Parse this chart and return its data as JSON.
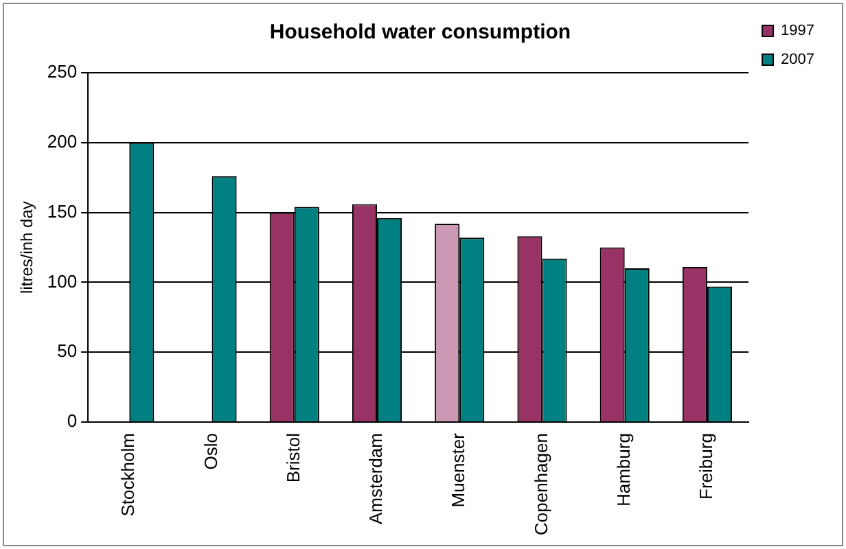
{
  "chart_data": {
    "type": "bar",
    "title": "Household water consumption",
    "ylabel": "litres/inh day",
    "categories": [
      "Stockholm",
      "Oslo",
      "Bristol",
      "Amsterdam",
      "Muenster",
      "Copenhagen",
      "Hamburg",
      "Freiburg"
    ],
    "series": [
      {
        "name": "1997",
        "color": "#993366",
        "colors": [
          "#993366",
          "#993366",
          "#993366",
          "#993366",
          "#cc99b4",
          "#993366",
          "#993366",
          "#993366"
        ],
        "values": [
          null,
          null,
          150,
          156,
          142,
          133,
          125,
          111
        ]
      },
      {
        "name": "2007",
        "color": "#008080",
        "values": [
          200,
          176,
          154,
          146,
          132,
          117,
          110,
          97
        ]
      }
    ],
    "ylim": [
      0,
      250
    ],
    "yticks": [
      0,
      50,
      100,
      150,
      200,
      250
    ],
    "grid": "y",
    "legend": "right"
  }
}
